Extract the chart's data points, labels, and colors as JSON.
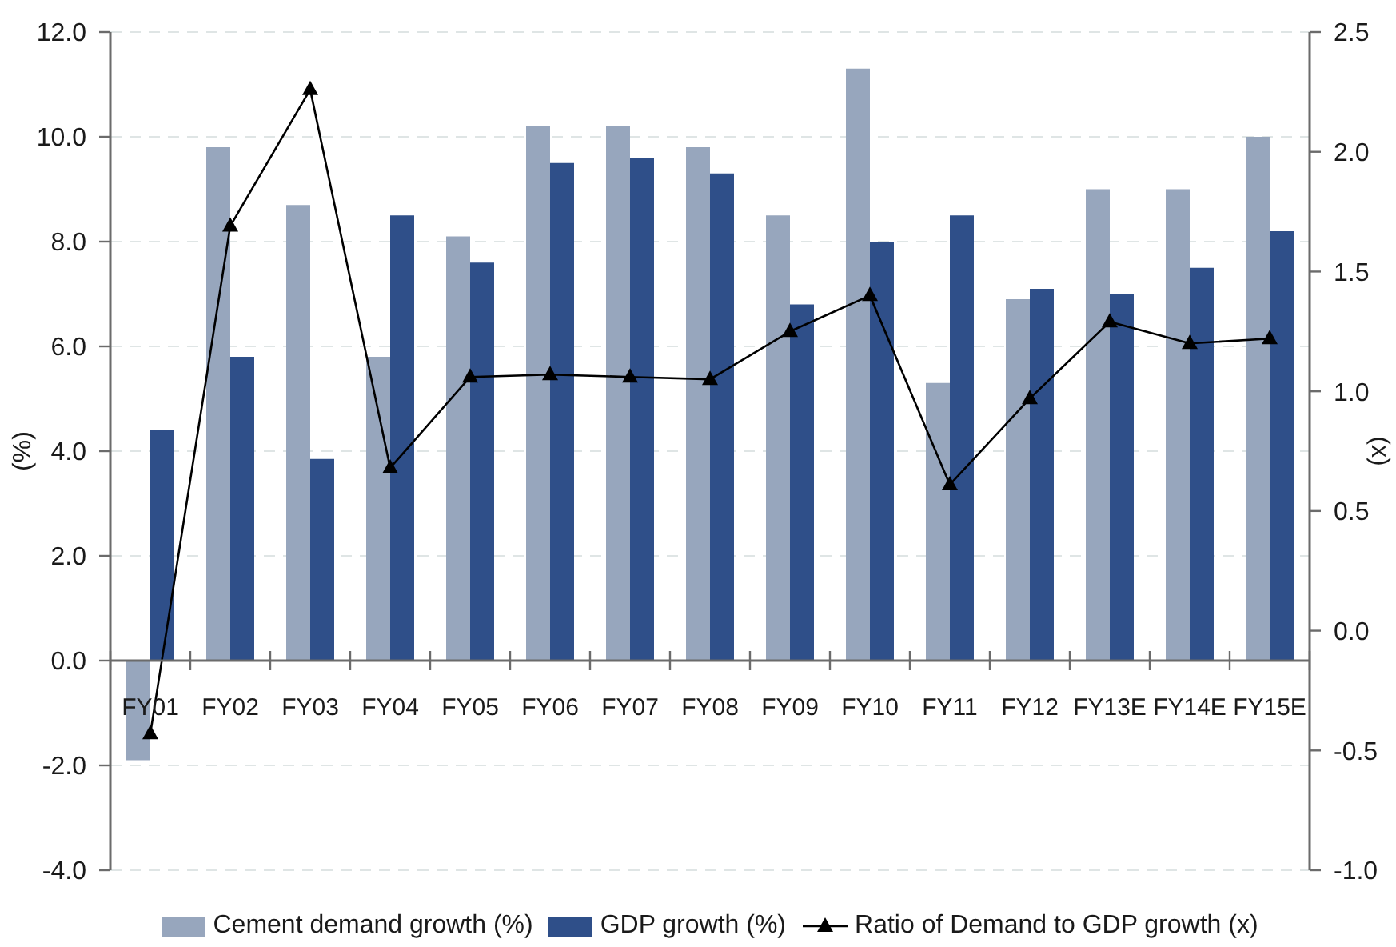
{
  "chart_data": {
    "type": "bar",
    "categories": [
      "FY01",
      "FY02",
      "FY03",
      "FY04",
      "FY05",
      "FY06",
      "FY07",
      "FY08",
      "FY09",
      "FY10",
      "FY11",
      "FY12",
      "FY13E",
      "FY14E",
      "FY15E"
    ],
    "series": [
      {
        "name": "Cement demand growth (%)",
        "color": "#97a6bd",
        "values": [
          -1.9,
          9.8,
          8.7,
          5.8,
          8.1,
          10.2,
          10.2,
          9.8,
          8.5,
          11.3,
          5.3,
          6.9,
          9.0,
          9.0,
          10.0
        ]
      },
      {
        "name": "GDP growth (%)",
        "color": "#2f4f89",
        "values": [
          4.4,
          5.8,
          3.85,
          8.5,
          7.6,
          9.5,
          9.6,
          9.3,
          6.8,
          8.0,
          8.5,
          7.1,
          7.0,
          7.5,
          8.2
        ]
      },
      {
        "name": "Ratio of Demand to GDP growth (x)",
        "type": "line",
        "axis": "y2",
        "color": "#000000",
        "marker": "triangle",
        "values": [
          -0.43,
          1.69,
          2.26,
          0.68,
          1.06,
          1.07,
          1.06,
          1.05,
          1.25,
          1.4,
          0.61,
          0.97,
          1.29,
          1.2,
          1.22
        ]
      }
    ],
    "ylabel": "(%)",
    "y2label": "(x)",
    "ylim": [
      -4,
      12
    ],
    "yticks": [
      {
        "value": -4,
        "label": "-4.0"
      },
      {
        "value": -2,
        "label": "-2.0"
      },
      {
        "value": 0,
        "label": "0.0"
      },
      {
        "value": 2,
        "label": "2.0"
      },
      {
        "value": 4,
        "label": "4.0"
      },
      {
        "value": 6,
        "label": "6.0"
      },
      {
        "value": 8,
        "label": "8.0"
      },
      {
        "value": 10,
        "label": "10.0"
      },
      {
        "value": 12,
        "label": "12.0"
      }
    ],
    "y2lim": [
      -1,
      2.5
    ],
    "y2ticks": [
      {
        "value": -1,
        "label": "-1.0"
      },
      -0.5,
      {
        "value": 0,
        "label": "0.0"
      },
      0.5,
      {
        "value": 1,
        "label": "1.0"
      },
      1.5,
      {
        "value": 2,
        "label": "2.0"
      },
      2.5
    ],
    "grid": "y",
    "legend": "bottom"
  }
}
